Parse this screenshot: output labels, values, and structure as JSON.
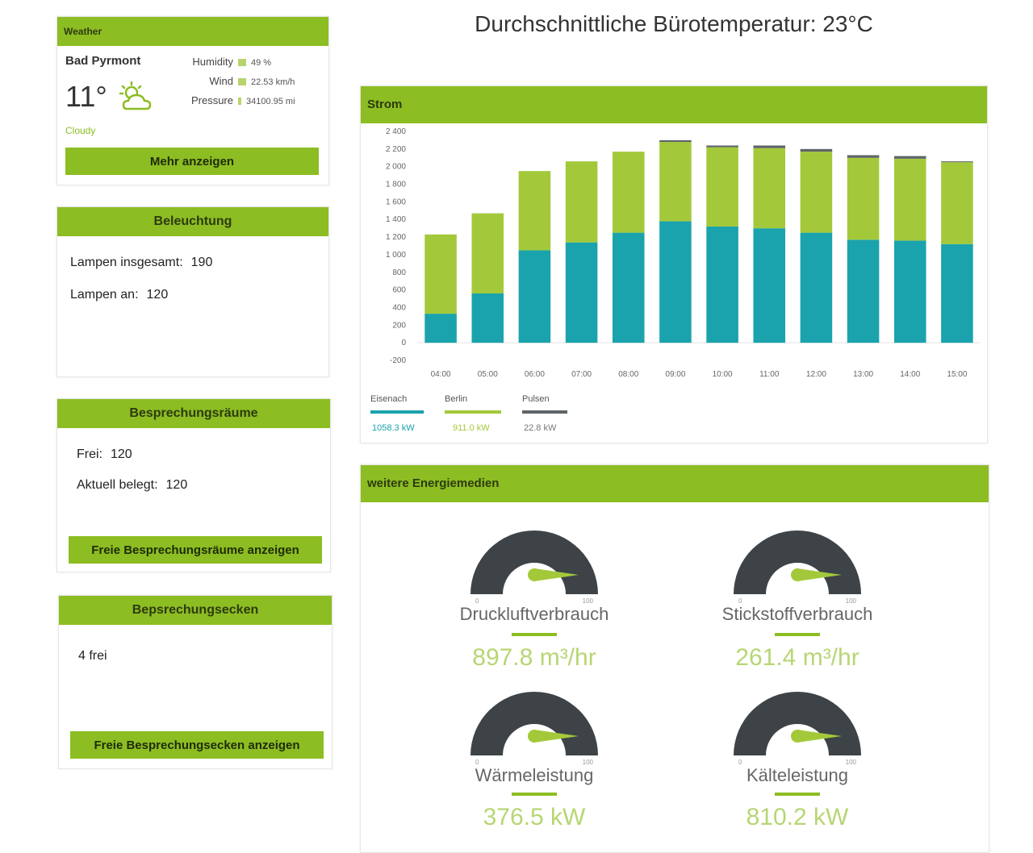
{
  "page_title": "Durchschnittliche Bürotemperatur: 23°C",
  "weather": {
    "header": "Weather",
    "city": "Bad Pyrmont",
    "temperature": "11°",
    "condition": "Cloudy",
    "humidity_label": "Humidity",
    "humidity_value": "49 %",
    "wind_label": "Wind",
    "wind_value": "22.53 km/h",
    "pressure_label": "Pressure",
    "pressure_value": "34100.95 mi",
    "button": "Mehr anzeigen",
    "icon": "partly-cloudy-icon"
  },
  "lighting": {
    "header": "Beleuchtung",
    "total_label": "Lampen insgesamt:",
    "total_value": "190",
    "on_label": "Lampen an:",
    "on_value": "120"
  },
  "meeting_rooms": {
    "header": "Besprechungsräume",
    "free_label": "Frei:",
    "free_value": "120",
    "occupied_label": "Aktuell belegt:",
    "occupied_value": "120",
    "button": "Freie Besprechungsräume anzeigen"
  },
  "meeting_corners": {
    "header": "Bepsrechungsecken",
    "status": "4 frei",
    "button": "Freie Besprechungsecken anzeigen"
  },
  "strom": {
    "header": "Strom",
    "legend": [
      {
        "name": "Eisenach",
        "value": "1058.3 kW",
        "color": "#1aa3ad"
      },
      {
        "name": "Berlin",
        "value": "911.0 kW",
        "color": "#a3c93a"
      },
      {
        "name": "Pulsen",
        "value": "22.8 kW",
        "color": "#5e6468"
      }
    ]
  },
  "chart_data": {
    "type": "bar",
    "stacked": true,
    "categories": [
      "04:00",
      "05:00",
      "06:00",
      "07:00",
      "08:00",
      "09:00",
      "10:00",
      "11:00",
      "12:00",
      "13:00",
      "14:00",
      "15:00"
    ],
    "series": [
      {
        "name": "Eisenach",
        "color": "#1aa3ad",
        "values": [
          330,
          560,
          1050,
          1140,
          1250,
          1380,
          1320,
          1300,
          1250,
          1170,
          1160,
          1120
        ]
      },
      {
        "name": "Berlin",
        "color": "#a3c93a",
        "values": [
          900,
          910,
          900,
          920,
          920,
          900,
          900,
          910,
          920,
          930,
          930,
          930
        ]
      },
      {
        "name": "Pulsen",
        "color": "#5e6468",
        "values": [
          0,
          0,
          0,
          0,
          0,
          20,
          20,
          30,
          30,
          30,
          30,
          10
        ]
      }
    ],
    "y_ticks": [
      "-200",
      "0",
      "200",
      "400",
      "600",
      "800",
      "1 000",
      "1 200",
      "1 400",
      "1 600",
      "1 800",
      "2 000",
      "2 200",
      "2 400"
    ],
    "ylim": [
      -200,
      2400
    ],
    "grid": false,
    "legend_position": "bottom-left"
  },
  "energy": {
    "header": "weitere Energiemedien",
    "gauges": [
      {
        "label": "Druckluftverbrauch",
        "value": "897.8 m³/hr",
        "min": "0",
        "max": "100"
      },
      {
        "label": "Stickstoffverbrauch",
        "value": "261.4 m³/hr",
        "min": "0",
        "max": "100"
      },
      {
        "label": "Wärmeleistung",
        "value": "376.5 kW",
        "min": "0",
        "max": "100"
      },
      {
        "label": "Kälteleistung",
        "value": "810.2 kW",
        "min": "0",
        "max": "100"
      }
    ]
  }
}
